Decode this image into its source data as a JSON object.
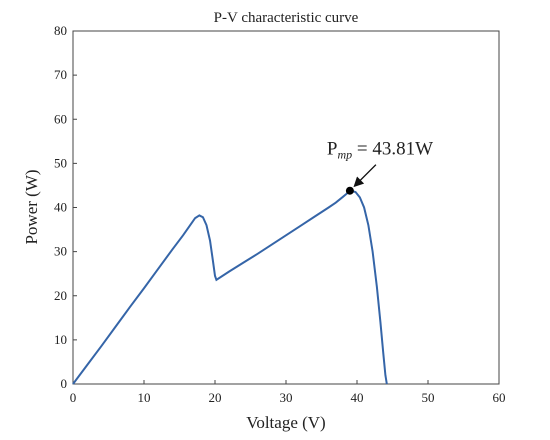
{
  "chart_data": {
    "type": "line",
    "title": "P-V characteristic curve",
    "xlabel": "Voltage (V)",
    "ylabel": "Power (W)",
    "xlim": [
      0,
      60
    ],
    "ylim": [
      0,
      80
    ],
    "xticks": [
      "0",
      "10",
      "20",
      "30",
      "40",
      "50",
      "60"
    ],
    "yticks": [
      "0",
      "10",
      "20",
      "30",
      "40",
      "50",
      "60",
      "70",
      "80"
    ],
    "grid": false,
    "series": [
      {
        "color": "#3565a8",
        "x": [
          0,
          2,
          4,
          6,
          8,
          10,
          12,
          14,
          15.5,
          16.5,
          17.2,
          17.8,
          18.3,
          18.8,
          19.3,
          19.7,
          20.0,
          20.2,
          22,
          24,
          26,
          28,
          30,
          32,
          34,
          36,
          37,
          38,
          38.6,
          39.2,
          39.8,
          40.4,
          41.0,
          41.6,
          42.2,
          42.8,
          43.3,
          43.7,
          44.0,
          44.2
        ],
        "y": [
          0,
          4.3,
          8.6,
          13.0,
          17.4,
          21.7,
          26.1,
          30.5,
          33.7,
          36.0,
          37.6,
          38.2,
          37.8,
          36.0,
          32.5,
          28.0,
          24.5,
          23.6,
          25.5,
          27.5,
          29.5,
          31.6,
          33.7,
          35.8,
          37.9,
          40.0,
          41.1,
          42.4,
          43.2,
          43.8,
          43.5,
          42.3,
          40.0,
          36.0,
          30.0,
          22.0,
          14.0,
          7.0,
          2.0,
          0
        ]
      }
    ],
    "annotation": {
      "label_main": "P",
      "label_sub": "mp",
      "label_value": " = 43.81W",
      "x": 39.0,
      "y": 43.81
    }
  }
}
